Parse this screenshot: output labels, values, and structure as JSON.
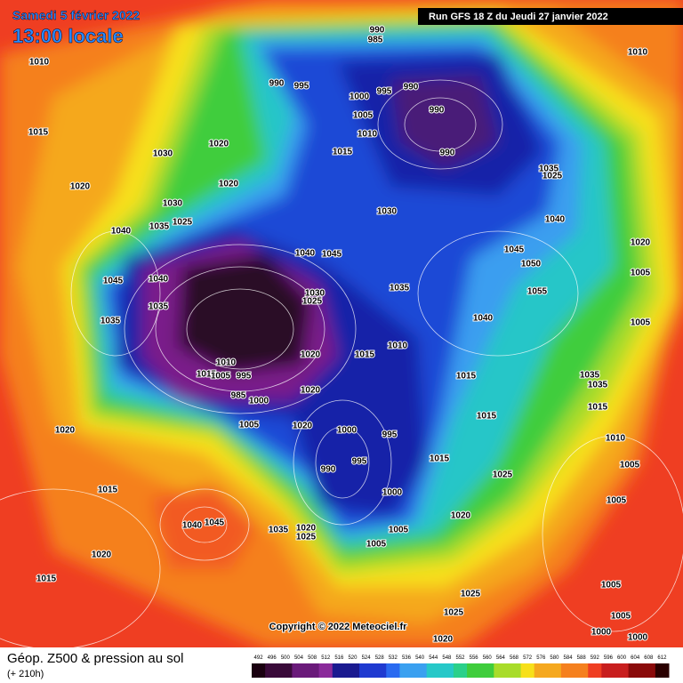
{
  "header": {
    "date": "Samedi 5 février 2022",
    "time": "13:00 locale",
    "run": "Run GFS 18 Z du Jeudi 27 janvier 2022"
  },
  "footer": {
    "title": "Géop. Z500 & pression au sol",
    "subtitle": "(+ 210h)",
    "copyright": "Copyright © 2022 Meteociel.fr",
    "colorbar_labels": [
      "492",
      "496",
      "500",
      "504",
      "508",
      "512",
      "516",
      "520",
      "524",
      "528",
      "532",
      "536",
      "540",
      "544",
      "548",
      "552",
      "556",
      "560",
      "564",
      "568",
      "572",
      "576",
      "580",
      "584",
      "588",
      "592",
      "596",
      "600",
      "604",
      "608",
      "612"
    ]
  },
  "isobar_labels": [
    "990",
    "985",
    "990",
    "995",
    "1000",
    "995",
    "990",
    "990",
    "990",
    "1005",
    "1010",
    "1015",
    "1030",
    "1040",
    "1045",
    "1050",
    "1055",
    "1035",
    "1040",
    "1045",
    "1030",
    "1025",
    "1020",
    "1015",
    "1010",
    "1040",
    "1015",
    "1015",
    "1000",
    "995",
    "995",
    "990",
    "1000",
    "1005",
    "1005",
    "1015",
    "1020",
    "1025",
    "1025",
    "1025",
    "1020",
    "1035",
    "1035",
    "1040",
    "1035",
    "1030",
    "1025",
    "1045",
    "1040",
    "1010",
    "1015",
    "1005",
    "995",
    "1000",
    "985",
    "1005",
    "1020",
    "1020",
    "1020",
    "1015",
    "1020",
    "1015",
    "1040",
    "1045",
    "1035",
    "1020",
    "1025",
    "1015",
    "1020",
    "1030",
    "1020",
    "1020",
    "1010",
    "1010",
    "1020",
    "1005",
    "1005",
    "1035",
    "1025",
    "1035",
    "1035",
    "1015",
    "1010",
    "1005",
    "1005",
    "1005",
    "1005",
    "1000",
    "1000"
  ]
}
